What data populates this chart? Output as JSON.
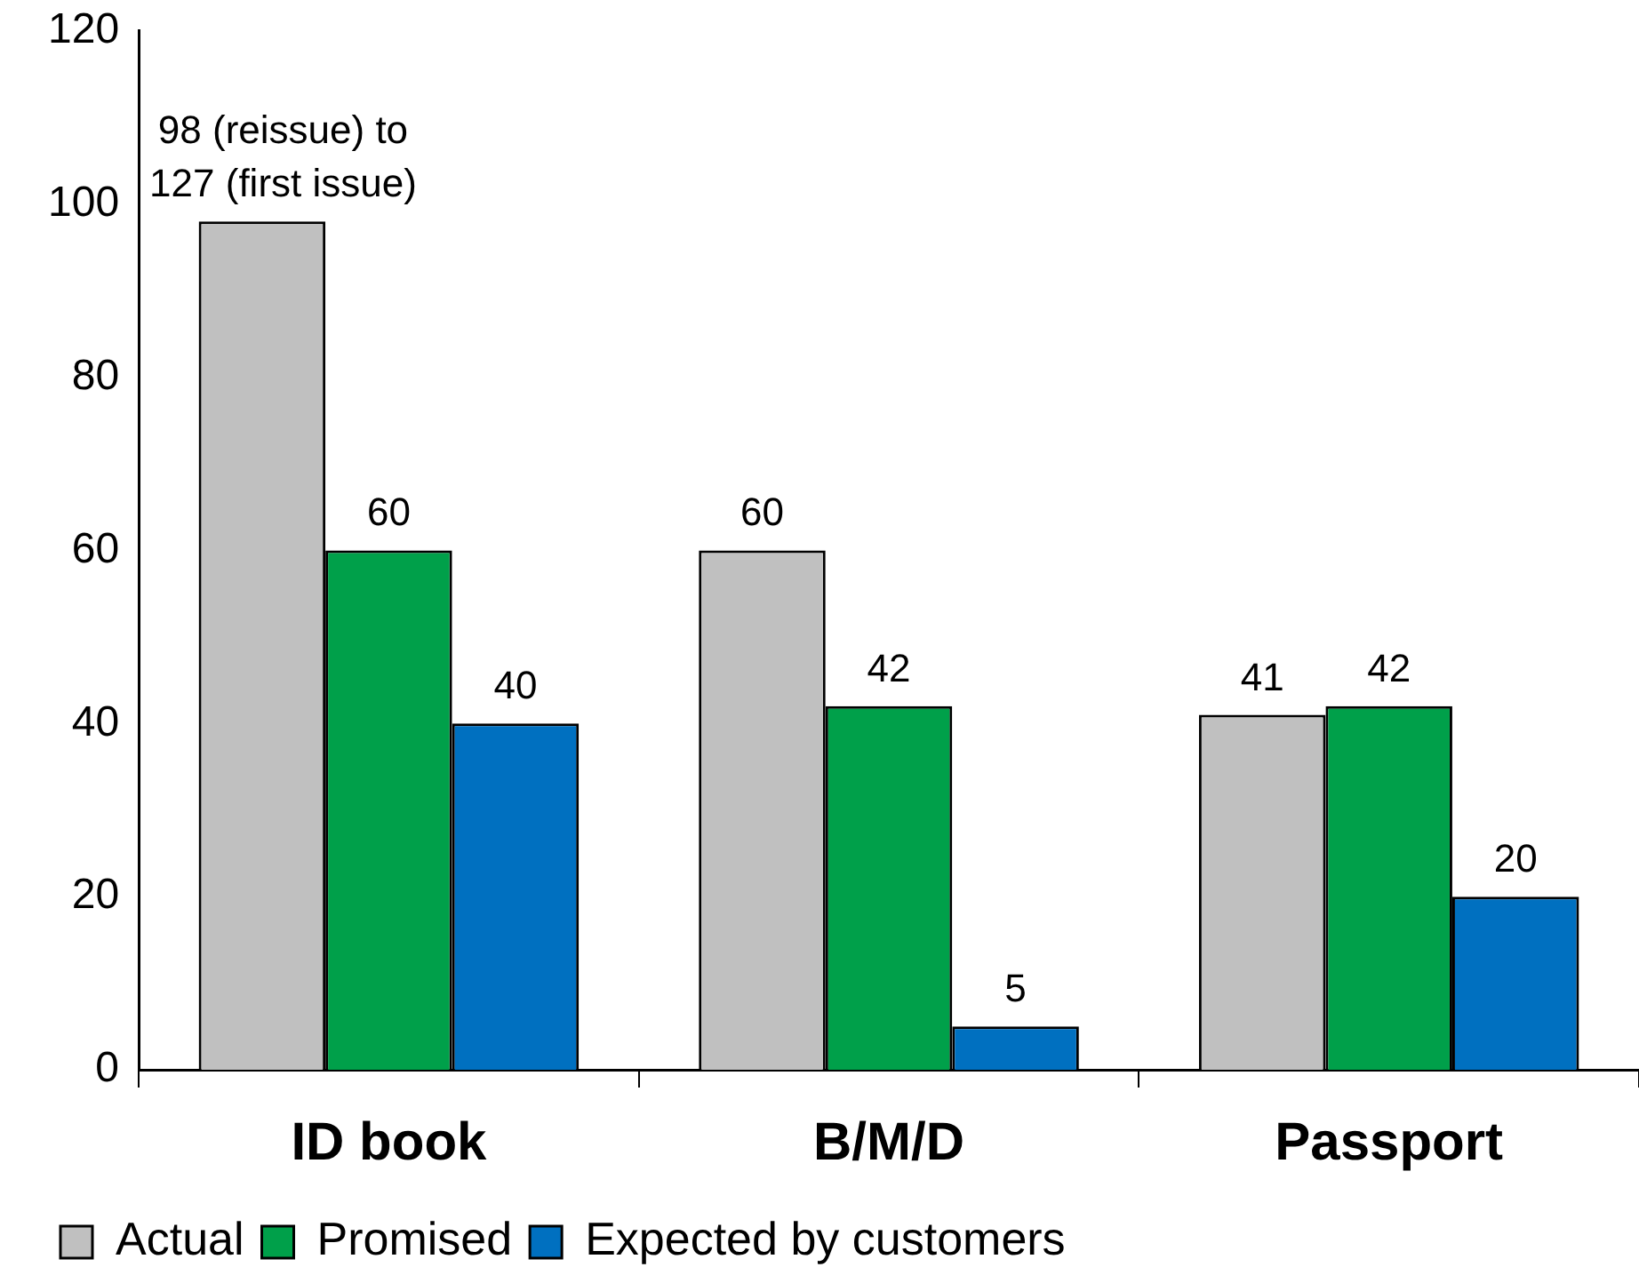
{
  "chart_data": {
    "type": "bar",
    "categories": [
      "ID book",
      "B/M/D",
      "Passport"
    ],
    "series": [
      {
        "name": "Actual",
        "color": "#c0c0c0",
        "values": [
          98,
          60,
          41
        ],
        "value_labels": [
          "98 (reissue) to 127 (first issue)",
          "60",
          "41"
        ]
      },
      {
        "name": "Promised",
        "color": "#00a04a",
        "values": [
          60,
          42,
          42
        ],
        "value_labels": [
          "60",
          "42",
          "42"
        ]
      },
      {
        "name": "Expected by customers",
        "color": "#0070c0",
        "values": [
          40,
          5,
          20
        ],
        "value_labels": [
          "40",
          "5",
          "20"
        ]
      }
    ],
    "ylim": [
      0,
      120
    ],
    "yticks": [
      0,
      20,
      40,
      60,
      80,
      100,
      120
    ],
    "grid": false,
    "legend": "bottom left"
  }
}
